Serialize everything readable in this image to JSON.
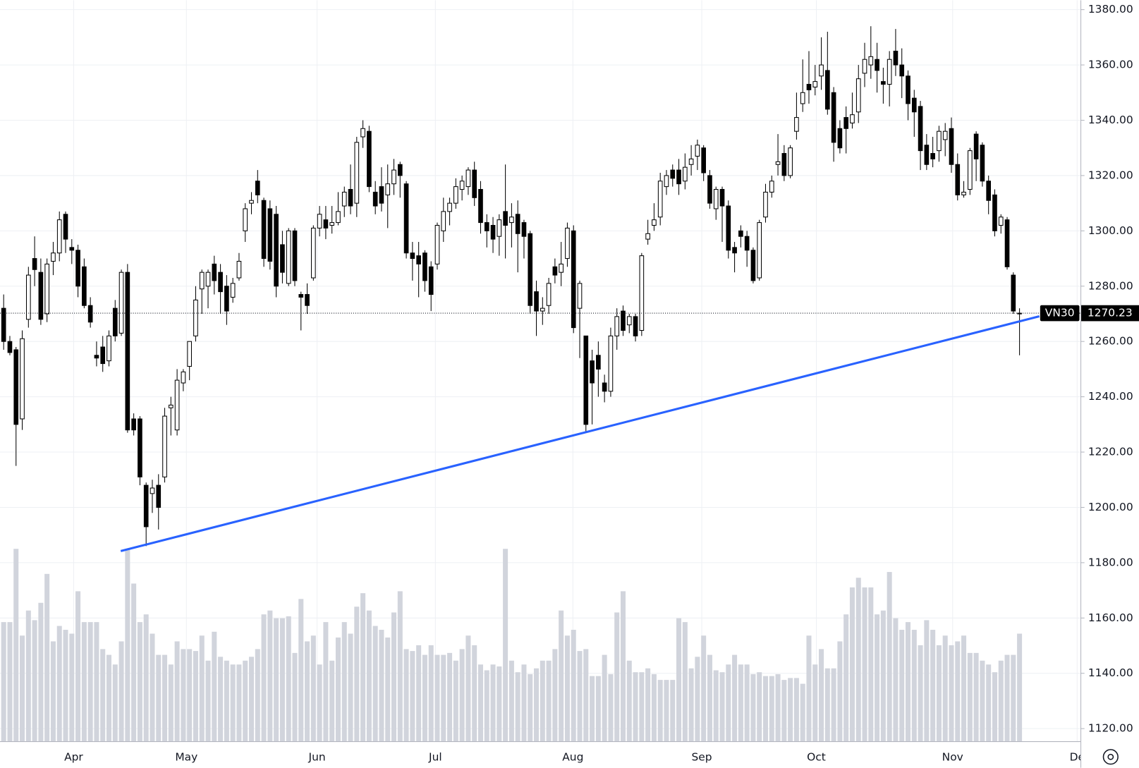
{
  "chart_data": {
    "type": "candlestick",
    "symbol": "VN30",
    "open": [
      1272,
      1260,
      1257,
      1232,
      1268,
      1290,
      1285,
      1270,
      1289,
      1292,
      1306,
      1294,
      1293,
      1287,
      1273,
      1255,
      1258,
      1253,
      1272,
      1263,
      1285,
      1232,
      1232,
      1208,
      1205,
      1208,
      1211,
      1236,
      1228,
      1245,
      1251,
      1262,
      1279,
      1280,
      1288,
      1285,
      1280,
      1276,
      1283,
      1300,
      1310,
      1318,
      1311,
      1308,
      1306,
      1295,
      1281,
      1300,
      1277,
      1277,
      1283,
      1301,
      1304,
      1302,
      1303,
      1309,
      1315,
      1310,
      1334,
      1336,
      1314,
      1316,
      1313,
      1317,
      1324,
      1317,
      1292,
      1291,
      1292,
      1287,
      1288,
      1300,
      1307,
      1310,
      1315,
      1316,
      1322,
      1315,
      1303,
      1302,
      1298,
      1307,
      1303,
      1306,
      1303,
      1299,
      1278,
      1271,
      1273,
      1287,
      1285,
      1290,
      1300,
      1272,
      1262,
      1253,
      1255,
      1245,
      1242,
      1262,
      1271,
      1266,
      1269,
      1264,
      1297,
      1302,
      1305,
      1316,
      1322,
      1322,
      1318,
      1324,
      1327,
      1330,
      1320,
      1308,
      1315,
      1309,
      1294,
      1300,
      1298,
      1293,
      1283,
      1305,
      1314,
      1324,
      1328,
      1320,
      1336,
      1346,
      1353,
      1352,
      1356,
      1358,
      1350,
      1337,
      1341,
      1339,
      1343,
      1357,
      1360,
      1362,
      1354,
      1353,
      1365,
      1360,
      1356,
      1348,
      1345,
      1331,
      1328,
      1329,
      1333,
      1337,
      1324,
      1313,
      1315,
      1335,
      1331,
      1318,
      1313,
      1302,
      1304,
      1284,
      1270
    ],
    "high": [
      1277,
      1262,
      1258,
      1264,
      1287,
      1298,
      1290,
      1290,
      1296,
      1307,
      1307,
      1297,
      1295,
      1290,
      1276,
      1260,
      1262,
      1264,
      1275,
      1286,
      1288,
      1234,
      1233,
      1209,
      1210,
      1212,
      1236,
      1240,
      1250,
      1250,
      1260,
      1280,
      1286,
      1286,
      1291,
      1288,
      1284,
      1283,
      1292,
      1310,
      1314,
      1322,
      1312,
      1311,
      1309,
      1300,
      1301,
      1301,
      1278,
      1281,
      1302,
      1309,
      1309,
      1309,
      1314,
      1316,
      1324,
      1334,
      1340,
      1338,
      1318,
      1323,
      1324,
      1326,
      1325,
      1318,
      1296,
      1296,
      1293,
      1289,
      1303,
      1312,
      1312,
      1319,
      1320,
      1323,
      1325,
      1318,
      1306,
      1305,
      1306,
      1324,
      1310,
      1311,
      1304,
      1300,
      1282,
      1276,
      1283,
      1290,
      1296,
      1303,
      1302,
      1282,
      1262,
      1257,
      1260,
      1248,
      1265,
      1272,
      1273,
      1270,
      1270,
      1292,
      1304,
      1310,
      1321,
      1322,
      1324,
      1326,
      1328,
      1331,
      1333,
      1331,
      1322,
      1316,
      1316,
      1311,
      1296,
      1302,
      1300,
      1294,
      1304,
      1317,
      1320,
      1335,
      1331,
      1331,
      1350,
      1362,
      1365,
      1360,
      1370,
      1372,
      1352,
      1340,
      1345,
      1350,
      1360,
      1368,
      1374,
      1368,
      1359,
      1365,
      1373,
      1366,
      1358,
      1351,
      1347,
      1335,
      1334,
      1338,
      1339,
      1341,
      1328,
      1318,
      1330,
      1336,
      1332,
      1320,
      1315,
      1306,
      1305,
      1285,
      1272
    ],
    "low": [
      1257,
      1255,
      1215,
      1228,
      1265,
      1280,
      1266,
      1267,
      1284,
      1289,
      1292,
      1288,
      1276,
      1272,
      1265,
      1251,
      1249,
      1251,
      1260,
      1262,
      1227,
      1226,
      1208,
      1186,
      1198,
      1192,
      1209,
      1226,
      1226,
      1242,
      1246,
      1260,
      1270,
      1272,
      1277,
      1270,
      1266,
      1274,
      1282,
      1296,
      1306,
      1310,
      1287,
      1286,
      1276,
      1281,
      1280,
      1280,
      1264,
      1270,
      1282,
      1298,
      1297,
      1299,
      1302,
      1305,
      1306,
      1305,
      1330,
      1314,
      1306,
      1307,
      1301,
      1313,
      1312,
      1290,
      1282,
      1276,
      1278,
      1271,
      1286,
      1296,
      1302,
      1308,
      1311,
      1313,
      1309,
      1299,
      1294,
      1292,
      1291,
      1290,
      1294,
      1285,
      1290,
      1270,
      1262,
      1266,
      1270,
      1281,
      1280,
      1287,
      1263,
      1254,
      1227,
      1230,
      1240,
      1238,
      1240,
      1257,
      1262,
      1263,
      1260,
      1262,
      1295,
      1300,
      1302,
      1313,
      1316,
      1313,
      1315,
      1320,
      1322,
      1318,
      1308,
      1304,
      1296,
      1290,
      1285,
      1294,
      1287,
      1281,
      1282,
      1303,
      1312,
      1320,
      1318,
      1319,
      1333,
      1343,
      1346,
      1349,
      1351,
      1342,
      1325,
      1328,
      1328,
      1337,
      1339,
      1352,
      1355,
      1350,
      1346,
      1345,
      1356,
      1348,
      1340,
      1334,
      1322,
      1322,
      1323,
      1325,
      1327,
      1321,
      1311,
      1312,
      1313,
      1318,
      1316,
      1306,
      1298,
      1299,
      1286,
      1270,
      1255
    ],
    "close": [
      1260,
      1256,
      1230,
      1261,
      1284,
      1286,
      1268,
      1288,
      1292,
      1304,
      1297,
      1293,
      1280,
      1273,
      1267,
      1254,
      1252,
      1262,
      1262,
      1285,
      1228,
      1228,
      1211,
      1193,
      1207,
      1200,
      1233,
      1237,
      1246,
      1249,
      1260,
      1275,
      1285,
      1285,
      1282,
      1278,
      1271,
      1281,
      1289,
      1308,
      1311,
      1313,
      1290,
      1289,
      1280,
      1285,
      1300,
      1282,
      1276,
      1273,
      1301,
      1306,
      1301,
      1303,
      1307,
      1314,
      1309,
      1332,
      1337,
      1316,
      1309,
      1310,
      1317,
      1322,
      1320,
      1292,
      1290,
      1288,
      1282,
      1277,
      1302,
      1307,
      1310,
      1316,
      1318,
      1322,
      1312,
      1303,
      1300,
      1297,
      1304,
      1302,
      1305,
      1299,
      1298,
      1273,
      1271,
      1272,
      1281,
      1284,
      1288,
      1301,
      1265,
      1281,
      1230,
      1245,
      1250,
      1242,
      1262,
      1269,
      1264,
      1269,
      1262,
      1291,
      1299,
      1304,
      1318,
      1320,
      1319,
      1317,
      1323,
      1326,
      1331,
      1321,
      1310,
      1315,
      1309,
      1293,
      1292,
      1298,
      1293,
      1282,
      1303,
      1314,
      1318,
      1325,
      1320,
      1330,
      1341,
      1350,
      1351,
      1354,
      1360,
      1344,
      1332,
      1330,
      1337,
      1342,
      1355,
      1362,
      1363,
      1358,
      1353,
      1362,
      1360,
      1356,
      1346,
      1343,
      1329,
      1324,
      1326,
      1336,
      1336,
      1324,
      1313,
      1314,
      1329,
      1326,
      1318,
      1311,
      1300,
      1305,
      1287,
      1271,
      1270.23
    ],
    "volume": [
      62,
      62,
      100,
      55,
      68,
      63,
      72,
      87,
      52,
      60,
      58,
      56,
      78,
      62,
      62,
      62,
      48,
      45,
      40,
      52,
      100,
      82,
      62,
      66,
      56,
      45,
      45,
      40,
      52,
      48,
      48,
      47,
      55,
      42,
      57,
      44,
      42,
      40,
      40,
      42,
      44,
      48,
      66,
      68,
      64,
      64,
      65,
      46,
      74,
      52,
      55,
      40,
      62,
      42,
      54,
      62,
      56,
      70,
      77,
      68,
      60,
      58,
      54,
      67,
      78,
      48,
      47,
      50,
      45,
      50,
      45,
      45,
      46,
      42,
      48,
      55,
      50,
      40,
      37,
      40,
      39,
      100,
      42,
      36,
      40,
      35,
      38,
      42,
      42,
      48,
      68,
      55,
      58,
      47,
      48,
      34,
      34,
      45,
      35,
      67,
      78,
      42,
      36,
      36,
      38,
      35,
      32,
      32,
      32,
      64,
      62,
      38,
      44,
      55,
      45,
      37,
      36,
      40,
      45,
      40,
      40,
      35,
      36,
      34,
      34,
      35,
      32,
      33,
      33,
      30,
      55,
      40,
      48,
      38,
      38,
      52,
      66,
      80,
      85,
      80,
      80,
      66,
      68,
      88,
      64,
      58,
      62,
      58,
      50,
      63,
      58,
      50,
      55,
      50,
      52,
      55,
      46,
      46,
      42,
      40,
      36,
      42,
      45,
      45,
      56
    ],
    "up_color": "#ffffff",
    "down_color": "#000000",
    "wick_color": "#000000",
    "volume_color": "#d1d4dc",
    "trendline": {
      "x": [
        18.9,
        167.2
      ],
      "values": [
        1184.2,
        1269.1
      ],
      "color": "#2962ff"
    },
    "xlim": [
      -0.59,
      173.9
    ],
    "xticks": [
      {
        "value": 11.3,
        "label": "Apr"
      },
      {
        "value": 29.5,
        "label": "May"
      },
      {
        "value": 50.6,
        "label": "Jun"
      },
      {
        "value": 69.7,
        "label": "Jul"
      },
      {
        "value": 91.9,
        "label": "Aug"
      },
      {
        "value": 112.7,
        "label": "Sep"
      },
      {
        "value": 131.2,
        "label": "Oct"
      },
      {
        "value": 153.2,
        "label": "Nov"
      },
      {
        "value": 173.3,
        "label": "De"
      }
    ],
    "ylim": [
      1115.3,
      1383.4
    ],
    "yticks": [
      {
        "value": 1120,
        "label": "1120.00"
      },
      {
        "value": 1140,
        "label": "1140.00"
      },
      {
        "value": 1160,
        "label": "1160.00"
      },
      {
        "value": 1180,
        "label": "1180.00"
      },
      {
        "value": 1200,
        "label": "1200.00"
      },
      {
        "value": 1220,
        "label": "1220.00"
      },
      {
        "value": 1240,
        "label": "1240.00"
      },
      {
        "value": 1260,
        "label": "1260.00"
      },
      {
        "value": 1280,
        "label": "1280.00"
      },
      {
        "value": 1300,
        "label": "1300.00"
      },
      {
        "value": 1320,
        "label": "1320.00"
      },
      {
        "value": 1340,
        "label": "1340.00"
      },
      {
        "value": 1360,
        "label": "1360.00"
      },
      {
        "value": 1380,
        "label": "1380.00"
      }
    ],
    "grid": true
  }
}
